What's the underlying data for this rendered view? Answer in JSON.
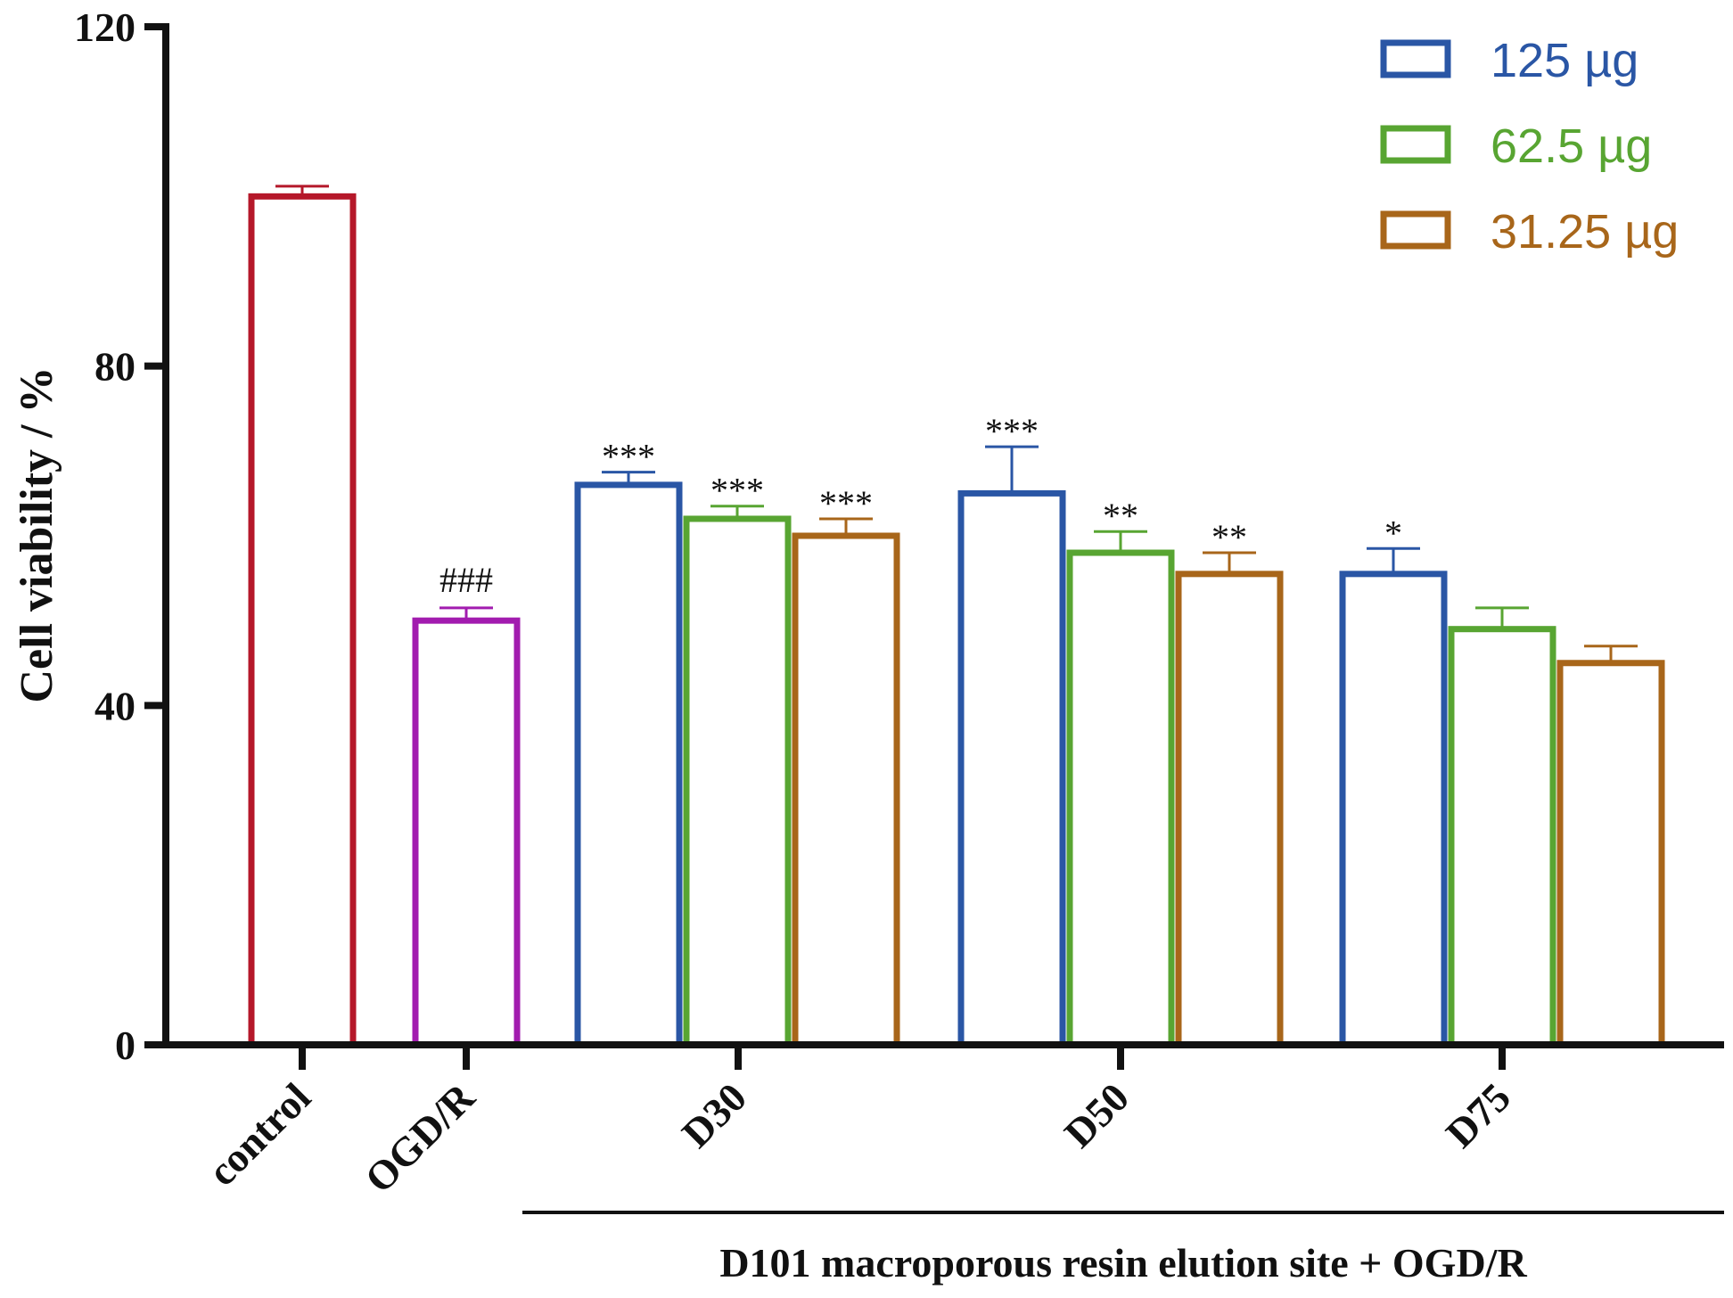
{
  "chart_data": {
    "type": "bar",
    "title": "",
    "ylabel": "Cell viability / %",
    "xlabel": "",
    "ylim": [
      0,
      120
    ],
    "yticks": [
      0,
      40,
      80,
      120
    ],
    "grid": false,
    "legend_position": "top-right",
    "legend": [
      {
        "label": "125 µg",
        "color": "#2A56A5"
      },
      {
        "label": "62.5 µg",
        "color": "#58A532"
      },
      {
        "label": "31.25 µg",
        "color": "#A8661A"
      }
    ],
    "categories": [
      "control",
      "OGD/R",
      "D30",
      "D50",
      "D75"
    ],
    "group_caption": "D101 macroporous resin elution site + OGD/R",
    "bars": [
      {
        "category": "control",
        "series": "control",
        "value": 100,
        "error": 1.2,
        "color": "#B5182A",
        "annotation": ""
      },
      {
        "category": "OGD/R",
        "series": "OGD/R",
        "value": 50,
        "error": 1.5,
        "color": "#A21CAF",
        "annotation": "###"
      },
      {
        "category": "D30",
        "series": "125 µg",
        "value": 66,
        "error": 1.5,
        "color": "#2A56A5",
        "annotation": "***"
      },
      {
        "category": "D30",
        "series": "62.5 µg",
        "value": 62,
        "error": 1.5,
        "color": "#58A532",
        "annotation": "***"
      },
      {
        "category": "D30",
        "series": "31.25 µg",
        "value": 60,
        "error": 2.0,
        "color": "#A8661A",
        "annotation": "***"
      },
      {
        "category": "D50",
        "series": "125 µg",
        "value": 65,
        "error": 5.5,
        "color": "#2A56A5",
        "annotation": "***"
      },
      {
        "category": "D50",
        "series": "62.5 µg",
        "value": 58,
        "error": 2.5,
        "color": "#58A532",
        "annotation": "**"
      },
      {
        "category": "D50",
        "series": "31.25 µg",
        "value": 55.5,
        "error": 2.5,
        "color": "#A8661A",
        "annotation": "**"
      },
      {
        "category": "D75",
        "series": "125 µg",
        "value": 55.5,
        "error": 3.0,
        "color": "#2A56A5",
        "annotation": "*"
      },
      {
        "category": "D75",
        "series": "62.5 µg",
        "value": 49,
        "error": 2.5,
        "color": "#58A532",
        "annotation": ""
      },
      {
        "category": "D75",
        "series": "31.25 µg",
        "value": 45,
        "error": 2.0,
        "color": "#A8661A",
        "annotation": ""
      }
    ]
  }
}
